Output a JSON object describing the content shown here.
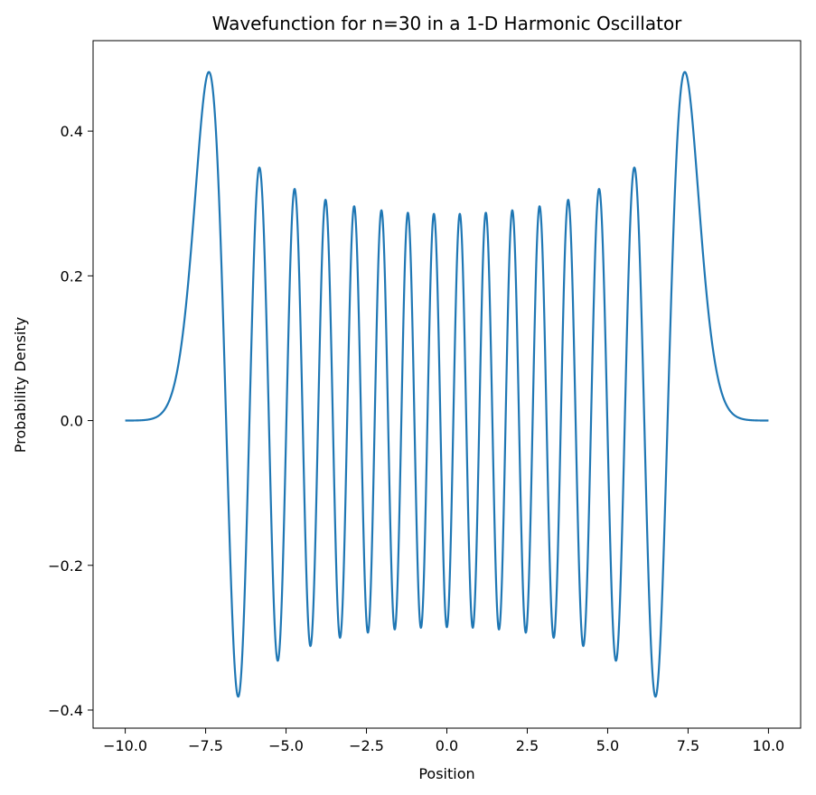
{
  "chart_data": {
    "type": "line",
    "title": "Wavefunction for n=30 in a 1-D Harmonic Oscillator",
    "xlabel": "Position",
    "ylabel": "Probability Density",
    "xlim": [
      -11.0,
      11.0
    ],
    "ylim": [
      -0.425,
      0.525
    ],
    "xticks": [
      -10.0,
      -7.5,
      -5.0,
      -2.5,
      0.0,
      2.5,
      5.0,
      7.5,
      10.0
    ],
    "xtick_labels": [
      "−10.0",
      "−7.5",
      "−5.0",
      "−2.5",
      "0.0",
      "2.5",
      "5.0",
      "7.5",
      "10.0"
    ],
    "yticks": [
      -0.4,
      -0.2,
      0.0,
      0.2,
      0.4
    ],
    "ytick_labels": [
      "−0.4",
      "−0.2",
      "0.0",
      "0.2",
      "0.4"
    ],
    "grid": false,
    "series": [
      {
        "quantum_number": 30,
        "x_range": [
          -10.0,
          10.0
        ],
        "color": "#1f77b4"
      }
    ]
  }
}
